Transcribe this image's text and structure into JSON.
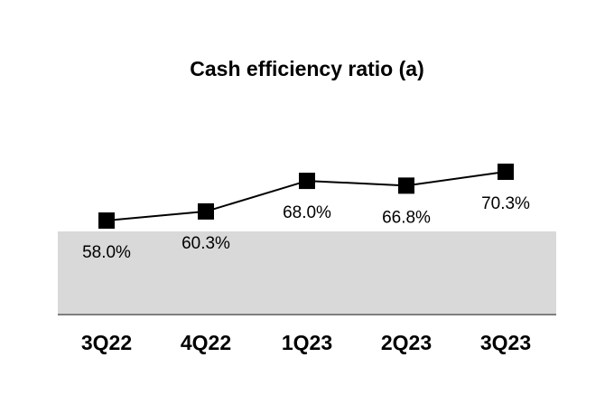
{
  "chart_data": {
    "type": "line",
    "title": "Cash efficiency ratio (a)",
    "categories": [
      "3Q22",
      "4Q22",
      "1Q23",
      "2Q23",
      "3Q23"
    ],
    "values": [
      58.0,
      60.3,
      68.0,
      66.8,
      70.3
    ],
    "data_labels": [
      "58.0%",
      "60.3%",
      "68.0%",
      "66.8%",
      "70.3%"
    ],
    "marker": "square",
    "line_color": "#000000",
    "band_color": "#d9d9d9",
    "grid": false,
    "legend": "none"
  }
}
